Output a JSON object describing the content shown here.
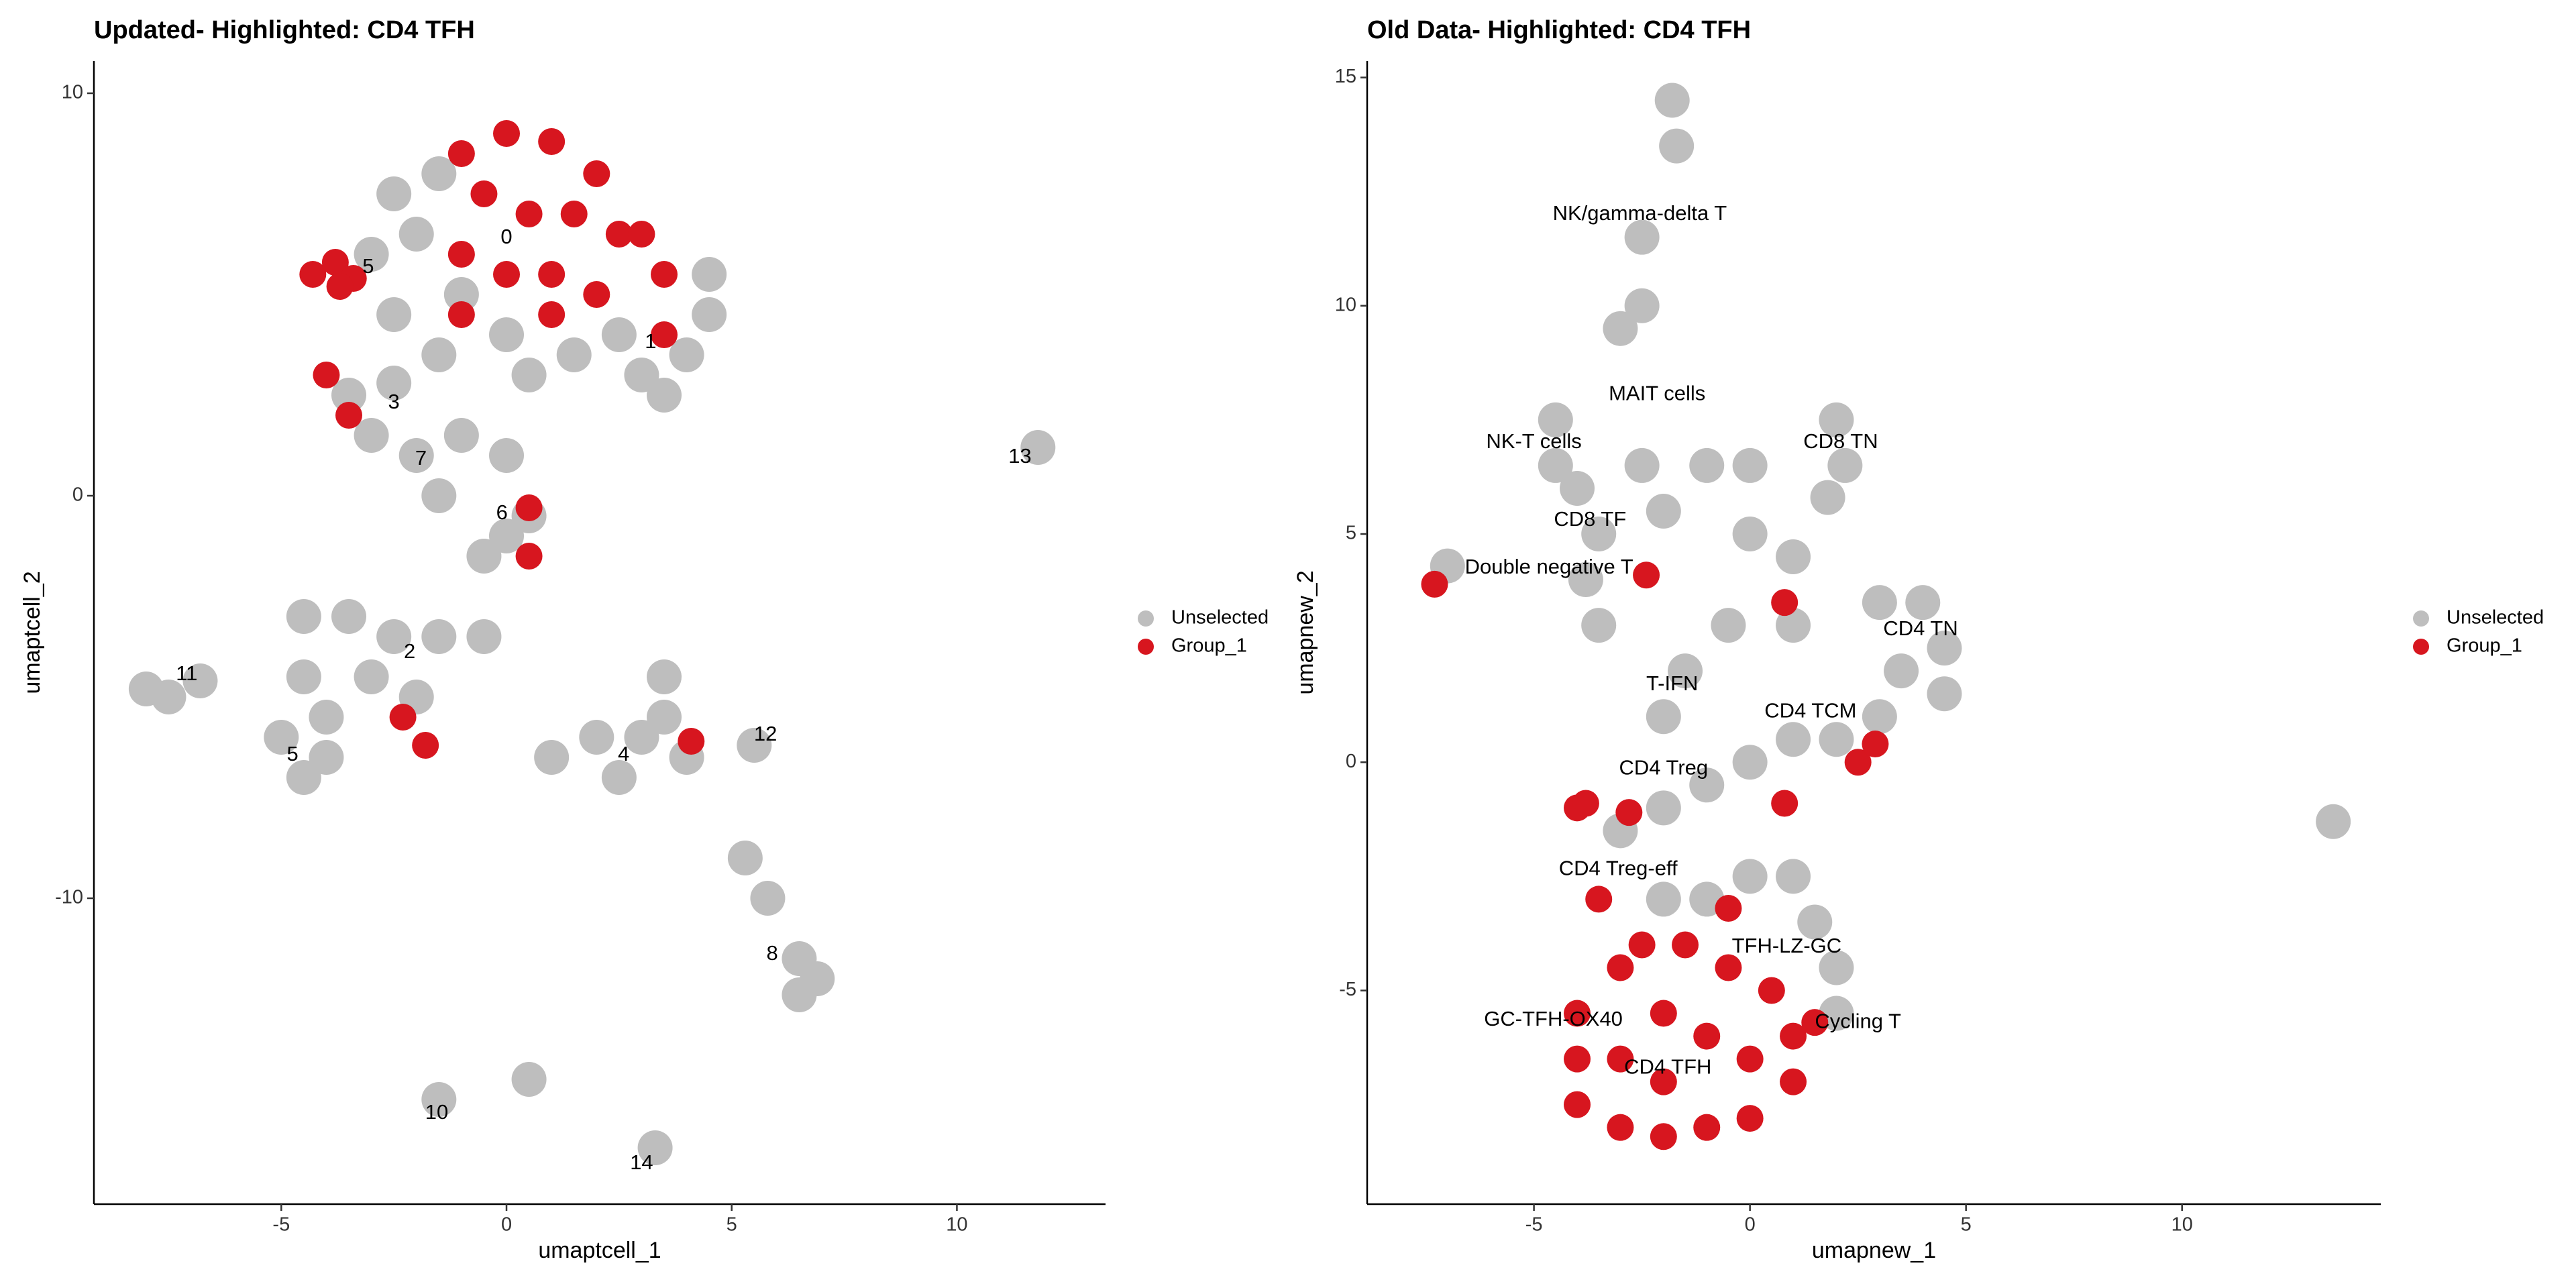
{
  "chart_data": [
    {
      "type": "scatter",
      "title": "Updated- Highlighted: CD4 TFH",
      "x_label": "umaptcell_1",
      "y_label": "umaptcell_2",
      "xlim": [
        -9.16,
        13.3
      ],
      "ylim": [
        -17.6,
        10.8
      ],
      "xticks": [
        -5,
        0,
        5,
        10
      ],
      "yticks": [
        -10,
        0,
        10
      ],
      "legend": "right",
      "series": [
        {
          "name": "Unselected",
          "color": "#bebebe",
          "x": [
            -2.5,
            -1.5,
            -2,
            -3,
            -1,
            0,
            1.5,
            3,
            4,
            4.5,
            4.5,
            2.5,
            -1.5,
            -2.5,
            0.5,
            3.5,
            -3.5,
            -3,
            -2.5,
            -2,
            -1.5,
            -1,
            0,
            0.5,
            -0.5,
            0,
            -4.5,
            -3.5,
            -2.5,
            -1.5,
            -0.5,
            -3,
            -2,
            -4.5,
            -5,
            -4.5,
            -4,
            -4,
            -7.5,
            -8,
            -6.8,
            1,
            2,
            3,
            3.5,
            2.5,
            4,
            3.5,
            5.5,
            11.8,
            5.3,
            5.8,
            6.5,
            6.9,
            6.5,
            -1.5,
            0.5,
            3.3
          ],
          "y": [
            7.5,
            8,
            6.5,
            6,
            5,
            4,
            3.5,
            3,
            3.5,
            4.5,
            5.5,
            4,
            3.5,
            4.5,
            3,
            2.5,
            2.5,
            1.5,
            2.8,
            1,
            0,
            1.5,
            1,
            -0.5,
            -1.5,
            -1,
            -3,
            -3,
            -3.5,
            -3.5,
            -3.5,
            -4.5,
            -5,
            -4.5,
            -6,
            -7,
            -6.5,
            -5.5,
            -5,
            -4.8,
            -4.6,
            -6.5,
            -6,
            -6,
            -5.5,
            -7,
            -6.5,
            -4.5,
            -6.2,
            1.2,
            -9,
            -10,
            -11.5,
            -12,
            -12.4,
            -15,
            -14.5,
            -16.2
          ]
        },
        {
          "name": "Group_1",
          "color": "#d7161f",
          "x": [
            0,
            -1,
            1,
            2,
            -0.5,
            0.5,
            1.5,
            2.5,
            3.5,
            3,
            -1,
            0,
            1,
            2,
            -1,
            1,
            -4.3,
            -3.8,
            -3.4,
            -3.7,
            -4,
            -3.5,
            -2.3,
            -1.8,
            4.1,
            0.5,
            0.5,
            3.5
          ],
          "y": [
            9,
            8.5,
            8.8,
            8,
            7.5,
            7,
            7,
            6.5,
            5.5,
            6.5,
            6,
            5.5,
            5.5,
            5,
            4.5,
            4.5,
            5.5,
            5.8,
            5.4,
            5.2,
            3,
            2,
            -5.5,
            -6.2,
            -6.1,
            -0.3,
            -1.5,
            4
          ]
        }
      ],
      "annotations": [
        {
          "text": "0",
          "x": 0,
          "y": 6.4
        },
        {
          "text": "5",
          "x": -3.07,
          "y": 5.67
        },
        {
          "text": "1",
          "x": 3.2,
          "y": 3.8
        },
        {
          "text": "3",
          "x": -2.5,
          "y": 2.3
        },
        {
          "text": "7",
          "x": -1.9,
          "y": 0.9
        },
        {
          "text": "6",
          "x": -0.1,
          "y": -0.45
        },
        {
          "text": "2",
          "x": -2.15,
          "y": -3.9
        },
        {
          "text": "11",
          "x": -7.1,
          "y": -4.45
        },
        {
          "text": "5",
          "x": -4.75,
          "y": -6.45
        },
        {
          "text": "4",
          "x": 2.6,
          "y": -6.45
        },
        {
          "text": "12",
          "x": 5.75,
          "y": -5.95
        },
        {
          "text": "13",
          "x": 11.4,
          "y": 0.95
        },
        {
          "text": "8",
          "x": 5.9,
          "y": -11.4
        },
        {
          "text": "10",
          "x": -1.55,
          "y": -15.35
        },
        {
          "text": "14",
          "x": 3.0,
          "y": -16.6
        }
      ]
    },
    {
      "type": "scatter",
      "title": "Old Data- Highlighted: CD4 TFH",
      "x_label": "umapnew_1",
      "y_label": "umapnew_2",
      "xlim": [
        -8.86,
        14.6
      ],
      "ylim": [
        -9.68,
        15.36
      ],
      "xticks": [
        -5,
        0,
        5,
        10
      ],
      "yticks": [
        -5,
        0,
        5,
        10,
        15
      ],
      "legend": "right",
      "series": [
        {
          "name": "Unselected",
          "color": "#bebebe",
          "x": [
            -1.8,
            -1.7,
            -2.5,
            -2.5,
            -3,
            -4.5,
            -4.5,
            -4,
            -3.5,
            -3.8,
            -3.5,
            -2.5,
            -2,
            -7,
            -1,
            0,
            0,
            1,
            1,
            -0.5,
            -1.5,
            -2,
            2,
            2.2,
            1.8,
            3,
            4,
            4.5,
            3.5,
            4.5,
            3,
            2,
            1,
            0,
            -1,
            -2,
            -3,
            0,
            1,
            -1,
            1.5,
            2,
            2,
            -2,
            13.5
          ],
          "y": [
            14.5,
            13.5,
            11.5,
            10,
            9.5,
            7.5,
            6.5,
            6,
            5,
            4,
            3,
            6.5,
            5.5,
            4.3,
            6.5,
            6.5,
            5,
            4.5,
            3,
            3,
            2,
            1,
            7.5,
            6.5,
            5.8,
            3.5,
            3.5,
            2.5,
            2,
            1.5,
            1,
            0.5,
            0.5,
            0,
            -0.5,
            -1,
            -1.5,
            -2.5,
            -2.5,
            -3,
            -3.5,
            -4.5,
            -5.5,
            -3,
            -1.3
          ]
        },
        {
          "name": "Group_1",
          "color": "#d7161f",
          "x": [
            -4,
            -4,
            -4,
            -3,
            -2,
            -1,
            0,
            1,
            1,
            0.5,
            -0.5,
            -1.5,
            -2.5,
            -3,
            -2,
            -2,
            -3,
            0,
            -1,
            -0.5,
            -3.5,
            -4,
            -3.8,
            -2.8,
            -7.3,
            -2.4,
            0.8,
            2.5,
            2.9,
            0.8,
            1.5
          ],
          "y": [
            -5.5,
            -6.5,
            -7.5,
            -8,
            -8.2,
            -8,
            -7.8,
            -7,
            -6,
            -5,
            -4.5,
            -4,
            -4,
            -4.5,
            -5.5,
            -7,
            -6.5,
            -6.5,
            -6,
            -3.2,
            -3,
            -1,
            -0.9,
            -1.1,
            3.9,
            4.1,
            3.5,
            0,
            0.4,
            -0.9,
            -5.7
          ]
        }
      ],
      "annotations": [
        {
          "text": "NK/gamma-delta T",
          "x": -2.55,
          "y": 12.0
        },
        {
          "text": "MAIT cells",
          "x": -2.15,
          "y": 8.05
        },
        {
          "text": "NK-T cells",
          "x": -5.0,
          "y": 7.0
        },
        {
          "text": "CD8 TN",
          "x": 2.1,
          "y": 7.0
        },
        {
          "text": "CD8 TF",
          "x": -3.7,
          "y": 5.3
        },
        {
          "text": "Double negative T",
          "x": -4.65,
          "y": 4.25
        },
        {
          "text": "CD4 TN",
          "x": 3.95,
          "y": 2.9
        },
        {
          "text": "T-IFN",
          "x": -1.8,
          "y": 1.7
        },
        {
          "text": "CD4 TCM",
          "x": 1.4,
          "y": 1.1
        },
        {
          "text": "CD4 Treg",
          "x": -2.0,
          "y": -0.15
        },
        {
          "text": "CD4 Treg-eff",
          "x": -3.05,
          "y": -2.35
        },
        {
          "text": "TFH-LZ-GC",
          "x": 0.85,
          "y": -4.05
        },
        {
          "text": "GC-TFH-OX40",
          "x": -4.55,
          "y": -5.65
        },
        {
          "text": "Cycling T",
          "x": 2.5,
          "y": -5.7
        },
        {
          "text": "CD4 TFH",
          "x": -1.9,
          "y": -6.7
        }
      ]
    }
  ]
}
